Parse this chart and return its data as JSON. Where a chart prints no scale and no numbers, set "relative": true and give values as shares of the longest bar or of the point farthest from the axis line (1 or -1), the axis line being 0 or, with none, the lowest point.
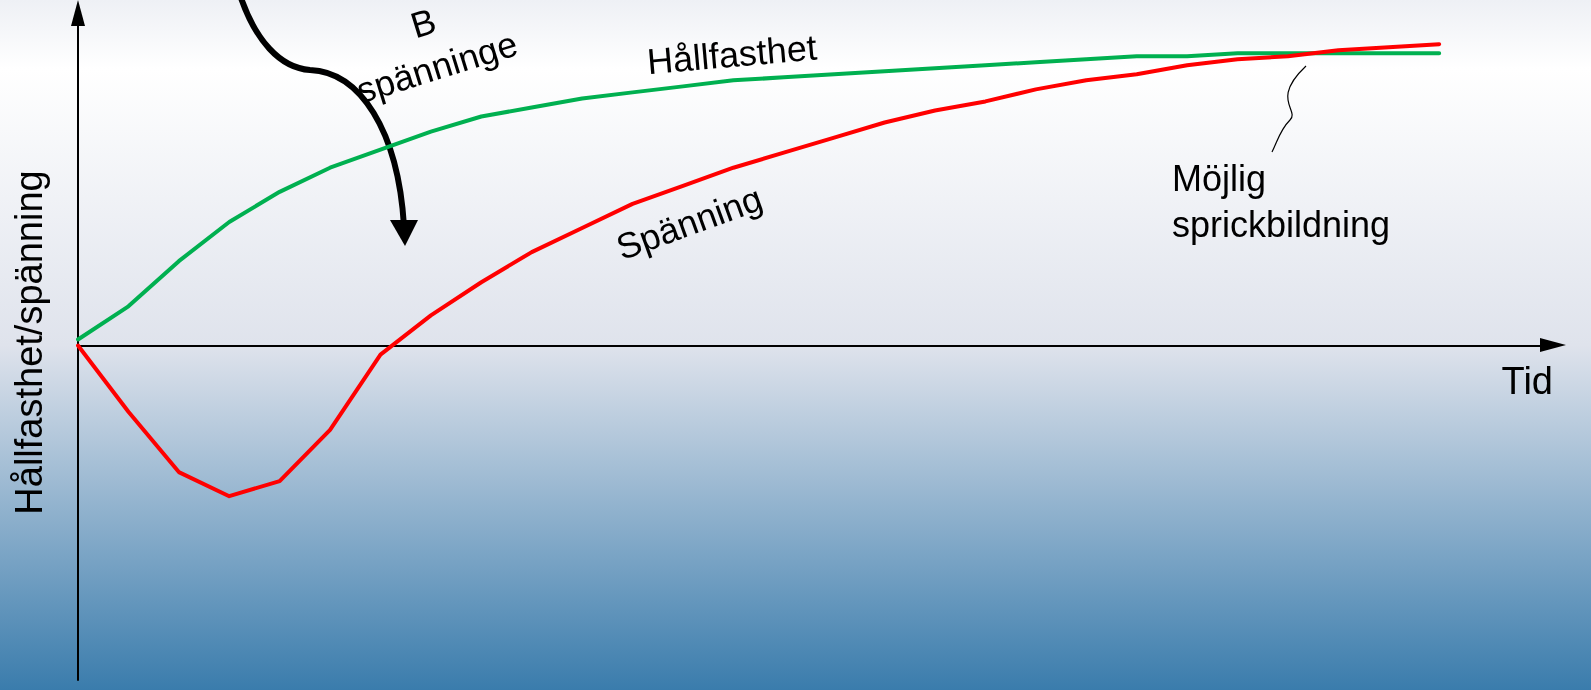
{
  "chart_data": {
    "type": "line",
    "relative": true,
    "ylabel": "Hållfasthet/spänning",
    "xlabel": "Tid",
    "categories": [
      null,
      null,
      null,
      null,
      null,
      null,
      null,
      null,
      null,
      null,
      null,
      null,
      null,
      null,
      null,
      null,
      null,
      null,
      null,
      null,
      null,
      null,
      null,
      null,
      null,
      null,
      null,
      null,
      null,
      null
    ],
    "series": [
      {
        "name": "Hållfasthet",
        "color": "#00b050",
        "values": [
          0.02,
          0.13,
          0.28,
          0.41,
          0.51,
          0.59,
          0.65,
          0.71,
          0.76,
          0.79,
          0.82,
          0.84,
          0.86,
          0.88,
          0.89,
          0.9,
          0.91,
          0.92,
          0.93,
          0.94,
          0.95,
          0.96,
          0.96,
          0.97,
          0.97,
          0.97,
          0.97,
          0.97,
          null,
          null
        ]
      },
      {
        "name": "Spänning",
        "color": "#ff0000",
        "values": [
          0,
          -0.22,
          -0.42,
          -0.5,
          -0.45,
          -0.28,
          -0.03,
          0.1,
          0.21,
          0.31,
          0.39,
          0.47,
          0.53,
          0.59,
          0.64,
          0.69,
          0.74,
          0.78,
          0.81,
          0.85,
          0.88,
          0.9,
          0.93,
          0.95,
          0.96,
          0.98,
          0.99,
          1,
          null,
          null
        ]
      }
    ],
    "annotations": [
      "B\nspänninge",
      "Möjlig\nsprickbildning"
    ],
    "grid": false,
    "legend": false,
    "marker": "none",
    "line_style": "solid"
  }
}
